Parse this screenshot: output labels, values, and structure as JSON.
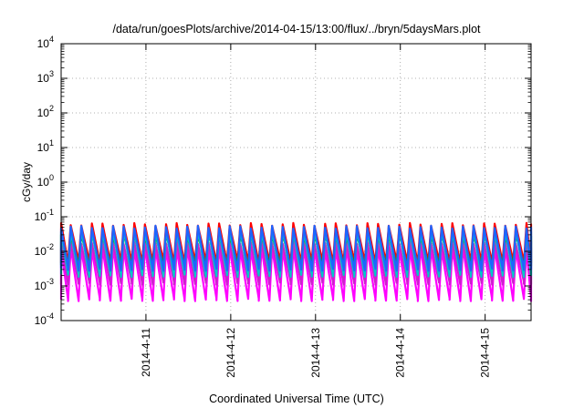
{
  "chart_data": {
    "type": "line",
    "title": "/data/run/goesPlots/archive/2014-04-15/13:00/flux/../bryn/5daysMars.plot",
    "xlabel": "Coordinated Universal Time (UTC)",
    "ylabel": "cGy/day",
    "yscale": "log",
    "ylim": [
      0.0001,
      10000
    ],
    "y_ticks": [
      {
        "base": "10",
        "exp": "-4",
        "value": 0.0001
      },
      {
        "base": "10",
        "exp": "-3",
        "value": 0.001
      },
      {
        "base": "10",
        "exp": "-2",
        "value": 0.01
      },
      {
        "base": "10",
        "exp": "-1",
        "value": 0.1
      },
      {
        "base": "10",
        "exp": "0",
        "value": 1
      },
      {
        "base": "10",
        "exp": "1",
        "value": 10
      },
      {
        "base": "10",
        "exp": "2",
        "value": 100
      },
      {
        "base": "10",
        "exp": "3",
        "value": 1000
      },
      {
        "base": "10",
        "exp": "4",
        "value": 10000
      }
    ],
    "x_range": [
      "2014-04-10 00:00",
      "2014-04-15 13:00"
    ],
    "x_ticks": [
      "2014-4-11",
      "2014-4-12",
      "2014-4-13",
      "2014-4-14",
      "2014-4-15"
    ],
    "grid": true,
    "pattern": "sawtooth, period about 3 h",
    "series": [
      {
        "color": "#ff00ff",
        "peak": 0.012,
        "trough": 0.0004
      },
      {
        "color": "#cc22cc",
        "peak": 0.018,
        "trough": 0.0012
      },
      {
        "color": "#ff0000",
        "peak": 0.06,
        "trough": 0.005
      },
      {
        "color": "#00b000",
        "peak": 0.03,
        "trough": 0.004
      },
      {
        "color": "#00c8c8",
        "peak": 0.04,
        "trough": 0.002
      },
      {
        "color": "#1e64ff",
        "peak": 0.05,
        "trough": 0.003
      }
    ]
  }
}
